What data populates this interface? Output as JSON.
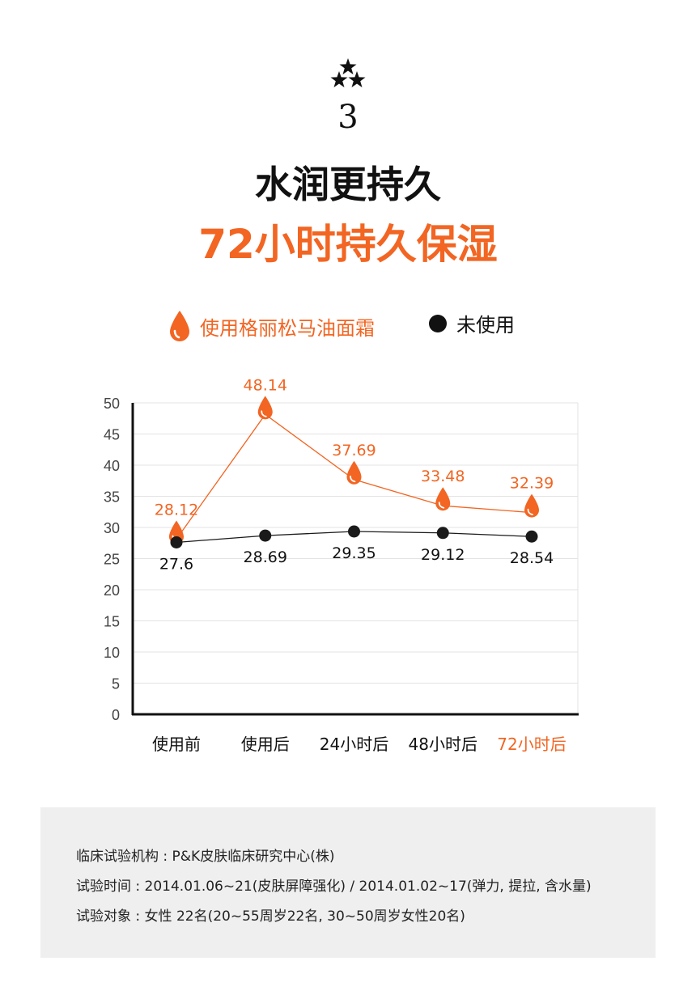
{
  "header": {
    "step_number": "3",
    "title_line1": "水润更持久",
    "title_line2": "72小时持久保湿"
  },
  "colors": {
    "accent": "#f26522",
    "dark": "#1a1a1a",
    "info_bg": "#efefef"
  },
  "legend": {
    "used_label": "使用格丽松马油面霜",
    "used_icon": "drop-icon",
    "unused_label": "未使用",
    "unused_icon": "dot-icon"
  },
  "chart_data": {
    "type": "line",
    "categories": [
      "使用前",
      "使用后",
      "24小时后",
      "48小时后",
      "72小时后"
    ],
    "highlight_category": "72小时后",
    "ylim": [
      0,
      50
    ],
    "yticks": [
      0,
      5,
      10,
      15,
      20,
      25,
      30,
      35,
      40,
      45,
      50
    ],
    "grid": true,
    "legend_position": "top",
    "series": [
      {
        "name": "使用格丽松马油面霜",
        "values": [
          28.12,
          48.14,
          37.69,
          33.48,
          32.39
        ],
        "labels": [
          "28.12",
          "48.14",
          "37.69",
          "33.48",
          "32.39"
        ],
        "color": "#f26522",
        "marker": "drop"
      },
      {
        "name": "未使用",
        "values": [
          27.6,
          28.69,
          29.35,
          29.12,
          28.54
        ],
        "labels": [
          "27.6",
          "28.69",
          "29.35",
          "29.12",
          "28.54"
        ],
        "color": "#1a1a1a",
        "marker": "dot"
      }
    ]
  },
  "info": {
    "line1": "临床试验机构 : P&K皮肤临床研究中心(株)",
    "line2": "试验时间 :  2014.01.06~21(皮肤屏障强化) / 2014.01.02~17(弹力, 提拉, 含水量)",
    "line3": "试验对象 : 女性 22名(20~55周岁22名, 30~50周岁女性20名)"
  }
}
